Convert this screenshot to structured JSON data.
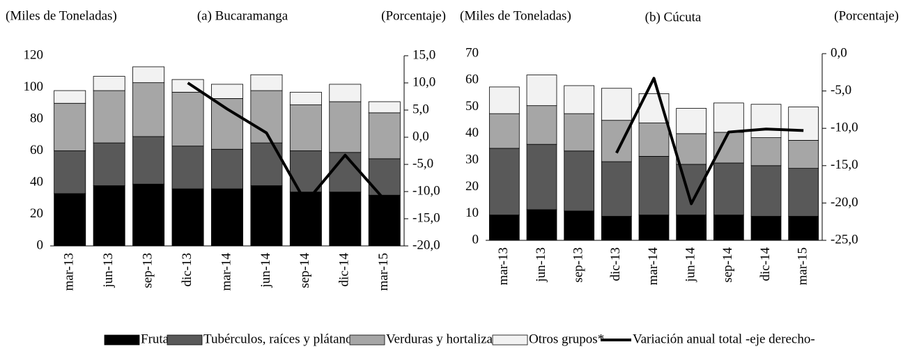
{
  "chart_data": [
    {
      "type": "bar",
      "stacked": true,
      "title": "(a) Bucaramanga",
      "y_label": "(Miles de Toneladas)",
      "y2_label": "(Porcentaje)",
      "categories": [
        "mar-13",
        "jun-13",
        "sep-13",
        "dic-13",
        "mar-14",
        "jun-14",
        "sep-14",
        "dic-14",
        "mar-15"
      ],
      "series": [
        {
          "name": "Frutas",
          "color": "#000000",
          "values": [
            33,
            38,
            39,
            36,
            36,
            38,
            34,
            34,
            32
          ]
        },
        {
          "name": "Tubérculos, raíces y plátanos",
          "color": "#595959",
          "values": [
            27,
            27,
            30,
            27,
            25,
            27,
            26,
            25,
            23
          ]
        },
        {
          "name": "Verduras y hortalizas",
          "color": "#a6a6a6",
          "values": [
            30,
            33,
            34,
            34,
            32,
            33,
            29,
            32,
            29
          ]
        },
        {
          "name": "Otros grupos*",
          "color": "#f2f2f2",
          "values": [
            8,
            9,
            10,
            8,
            9,
            10,
            8,
            11,
            7
          ]
        },
        {
          "name": "Variación anual total -eje derecho-",
          "color": "#000000",
          "type": "line",
          "axis": "y2",
          "values": [
            null,
            null,
            null,
            10.0,
            5.2,
            0.8,
            -12.0,
            -3.3,
            -11.5
          ]
        }
      ],
      "ylim": [
        0,
        120
      ],
      "yticks": [
        0,
        20,
        40,
        60,
        80,
        100,
        120
      ],
      "y2lim": [
        -20,
        15
      ],
      "y2ticks": [
        {
          "value": -20,
          "label": "-20,0"
        },
        {
          "value": -15,
          "label": "-15,0"
        },
        {
          "value": -10,
          "label": "-10,0"
        },
        {
          "value": -5,
          "label": "-5,0"
        },
        {
          "value": 0,
          "label": "0,0"
        },
        {
          "value": 5,
          "label": "5,0"
        },
        {
          "value": 10,
          "label": "10,0"
        },
        {
          "value": 15,
          "label": "15,0"
        }
      ]
    },
    {
      "type": "bar",
      "stacked": true,
      "title": "(b) Cúcuta",
      "y_label": "(Miles de Toneladas)",
      "y2_label": "(Porcentaje)",
      "categories": [
        "mar-13",
        "jun-13",
        "sep-13",
        "dic-13",
        "mar-14",
        "jun-14",
        "sep-14",
        "dic-14",
        "mar-15"
      ],
      "series": [
        {
          "name": "Frutas",
          "color": "#000000",
          "values": [
            9.5,
            11.5,
            11,
            9,
            9.5,
            9.5,
            9.5,
            9,
            9
          ]
        },
        {
          "name": "Tubérculos, raíces y plátanos",
          "color": "#595959",
          "values": [
            25,
            24.5,
            22.5,
            20.5,
            22,
            19,
            19.5,
            19,
            18
          ]
        },
        {
          "name": "Verduras y hortalizas",
          "color": "#a6a6a6",
          "values": [
            13,
            14.5,
            14,
            15.5,
            12.5,
            11.5,
            11.5,
            10.5,
            10.5
          ]
        },
        {
          "name": "Otros grupos*",
          "color": "#f2f2f2",
          "values": [
            10,
            11.5,
            10.5,
            12,
            11,
            9.5,
            11,
            12.5,
            12.5
          ]
        },
        {
          "name": "Variación anual total -eje derecho-",
          "color": "#000000",
          "type": "line",
          "axis": "y2",
          "values": [
            null,
            null,
            null,
            -13.3,
            -3.3,
            -20.1,
            -10.5,
            -10.1,
            -10.3
          ]
        }
      ],
      "ylim": [
        0,
        70
      ],
      "yticks": [
        0,
        10,
        20,
        30,
        40,
        50,
        60,
        70
      ],
      "y2lim": [
        -25,
        0
      ],
      "y2ticks": [
        {
          "value": -25,
          "label": "-25,0"
        },
        {
          "value": -20,
          "label": "-20,0"
        },
        {
          "value": -15,
          "label": "-15,0"
        },
        {
          "value": -10,
          "label": "-10,0"
        },
        {
          "value": -5,
          "label": "-5,0"
        },
        {
          "value": 0,
          "label": "0,0"
        }
      ]
    }
  ]
}
